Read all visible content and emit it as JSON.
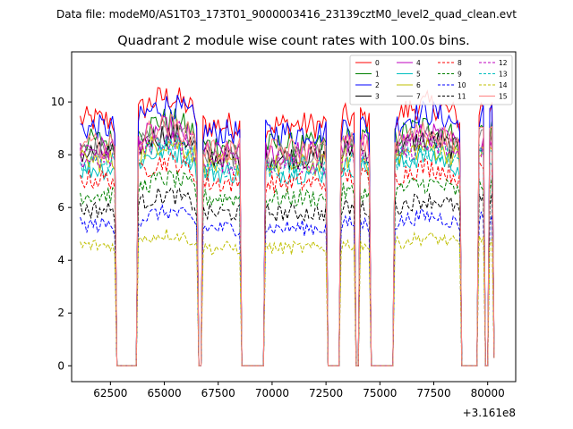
{
  "suptitle": "Data file: modeM0/AS1T03_173T01_9000003416_23139cztM0_level2_quad_clean.evt",
  "chart_data": {
    "type": "line",
    "title": "Quadrant 2 module wise count rates with 100.0s bins.",
    "xlabel": "",
    "ylabel": "",
    "x_offset_label": "+3.161e8",
    "x_offset": 316100000,
    "xlim": [
      60700,
      81300
    ],
    "ylim": [
      -0.6,
      11.9
    ],
    "xticks": [
      62500,
      65000,
      67500,
      70000,
      72500,
      75000,
      77500,
      80000
    ],
    "xtick_labels": [
      "62500",
      "65000",
      "67500",
      "70000",
      "72500",
      "75000",
      "77500",
      "80000"
    ],
    "yticks": [
      0,
      2,
      4,
      6,
      8,
      10
    ],
    "ytick_labels": [
      "0",
      "2",
      "4",
      "6",
      "8",
      "10"
    ],
    "grid": false,
    "legend_position": "top-right",
    "legend_columns": 4,
    "gaps": [
      [
        62750,
        63700
      ],
      [
        66550,
        66700
      ],
      [
        68550,
        69600
      ],
      [
        72550,
        73150
      ],
      [
        73900,
        74000
      ],
      [
        74550,
        75600
      ],
      [
        78750,
        79500
      ],
      [
        79900,
        80050
      ]
    ],
    "segments": [
      [
        61100,
        62650
      ],
      [
        63800,
        66450
      ],
      [
        66800,
        68450
      ],
      [
        69700,
        72450
      ],
      [
        73250,
        73800
      ],
      [
        74100,
        74450
      ],
      [
        75700,
        78650
      ],
      [
        79600,
        79800
      ],
      [
        80150,
        80300
      ]
    ],
    "series": [
      {
        "name": "0",
        "color": "#ff0000",
        "dash": "solid",
        "level": 9.6
      },
      {
        "name": "1",
        "color": "#008000",
        "dash": "solid",
        "level": 8.8
      },
      {
        "name": "2",
        "color": "#0000ff",
        "dash": "solid",
        "level": 9.3
      },
      {
        "name": "3",
        "color": "#000000",
        "dash": "solid",
        "level": 8.3
      },
      {
        "name": "4",
        "color": "#bf00bf",
        "dash": "solid",
        "level": 8.5
      },
      {
        "name": "5",
        "color": "#00bfbf",
        "dash": "solid",
        "level": 7.7
      },
      {
        "name": "6",
        "color": "#bfbf00",
        "dash": "solid",
        "level": 8.0
      },
      {
        "name": "7",
        "color": "#808080",
        "dash": "solid",
        "level": 8.4
      },
      {
        "name": "8",
        "color": "#ff0000",
        "dash": "dashed",
        "level": 7.3
      },
      {
        "name": "9",
        "color": "#008000",
        "dash": "dashed",
        "level": 6.7
      },
      {
        "name": "10",
        "color": "#0000ff",
        "dash": "dashed",
        "level": 5.5
      },
      {
        "name": "11",
        "color": "#000000",
        "dash": "dashed",
        "level": 6.1
      },
      {
        "name": "12",
        "color": "#bf00bf",
        "dash": "dashed",
        "level": 8.1
      },
      {
        "name": "13",
        "color": "#00bfbf",
        "dash": "dashed",
        "level": 7.9
      },
      {
        "name": "14",
        "color": "#bfbf00",
        "dash": "dashed",
        "level": 4.7
      },
      {
        "name": "15",
        "color": "#ff8080",
        "dash": "solid",
        "level": 8.6
      }
    ]
  }
}
